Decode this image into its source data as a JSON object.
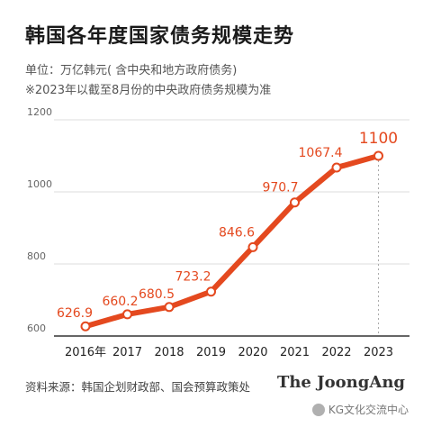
{
  "header": {
    "title": "韩国各年度国家债务规模走势",
    "unit_note": "单位：万亿韩元( 含中央和地方政府债务)",
    "footnote": "※2023年以截至8月份的中央政府债务规模为准"
  },
  "footer": {
    "source": "资料来源：韩国企划财政部、国会预算政策处",
    "brand": "The JoongAng",
    "watermark": "KG文化交流中心"
  },
  "colors": {
    "line": "#e4491f",
    "label": "#e4491f",
    "axis": "#333333",
    "grid": "#dddddd",
    "dashed": "#aaaaaa"
  },
  "chart_data": {
    "type": "line",
    "title": "韩国各年度国家债务规模走势",
    "categories": [
      "2016年",
      "2017",
      "2018",
      "2019",
      "2020",
      "2021",
      "2022",
      "2023"
    ],
    "series": [
      {
        "values": [
          626.9,
          660.2,
          680.5,
          723.2,
          846.6,
          970.7,
          1067.4,
          1100
        ]
      }
    ],
    "data_labels": [
      "626.9",
      "660.2",
      "680.5",
      "723.2",
      "846.6",
      "970.7",
      "1067.4",
      "1100"
    ],
    "y_ticks": [
      600,
      800,
      1000,
      1200
    ],
    "y_tick_labels": [
      "600",
      "800",
      "1000",
      "1200"
    ],
    "ylim": [
      600,
      1200
    ],
    "grid": true
  }
}
